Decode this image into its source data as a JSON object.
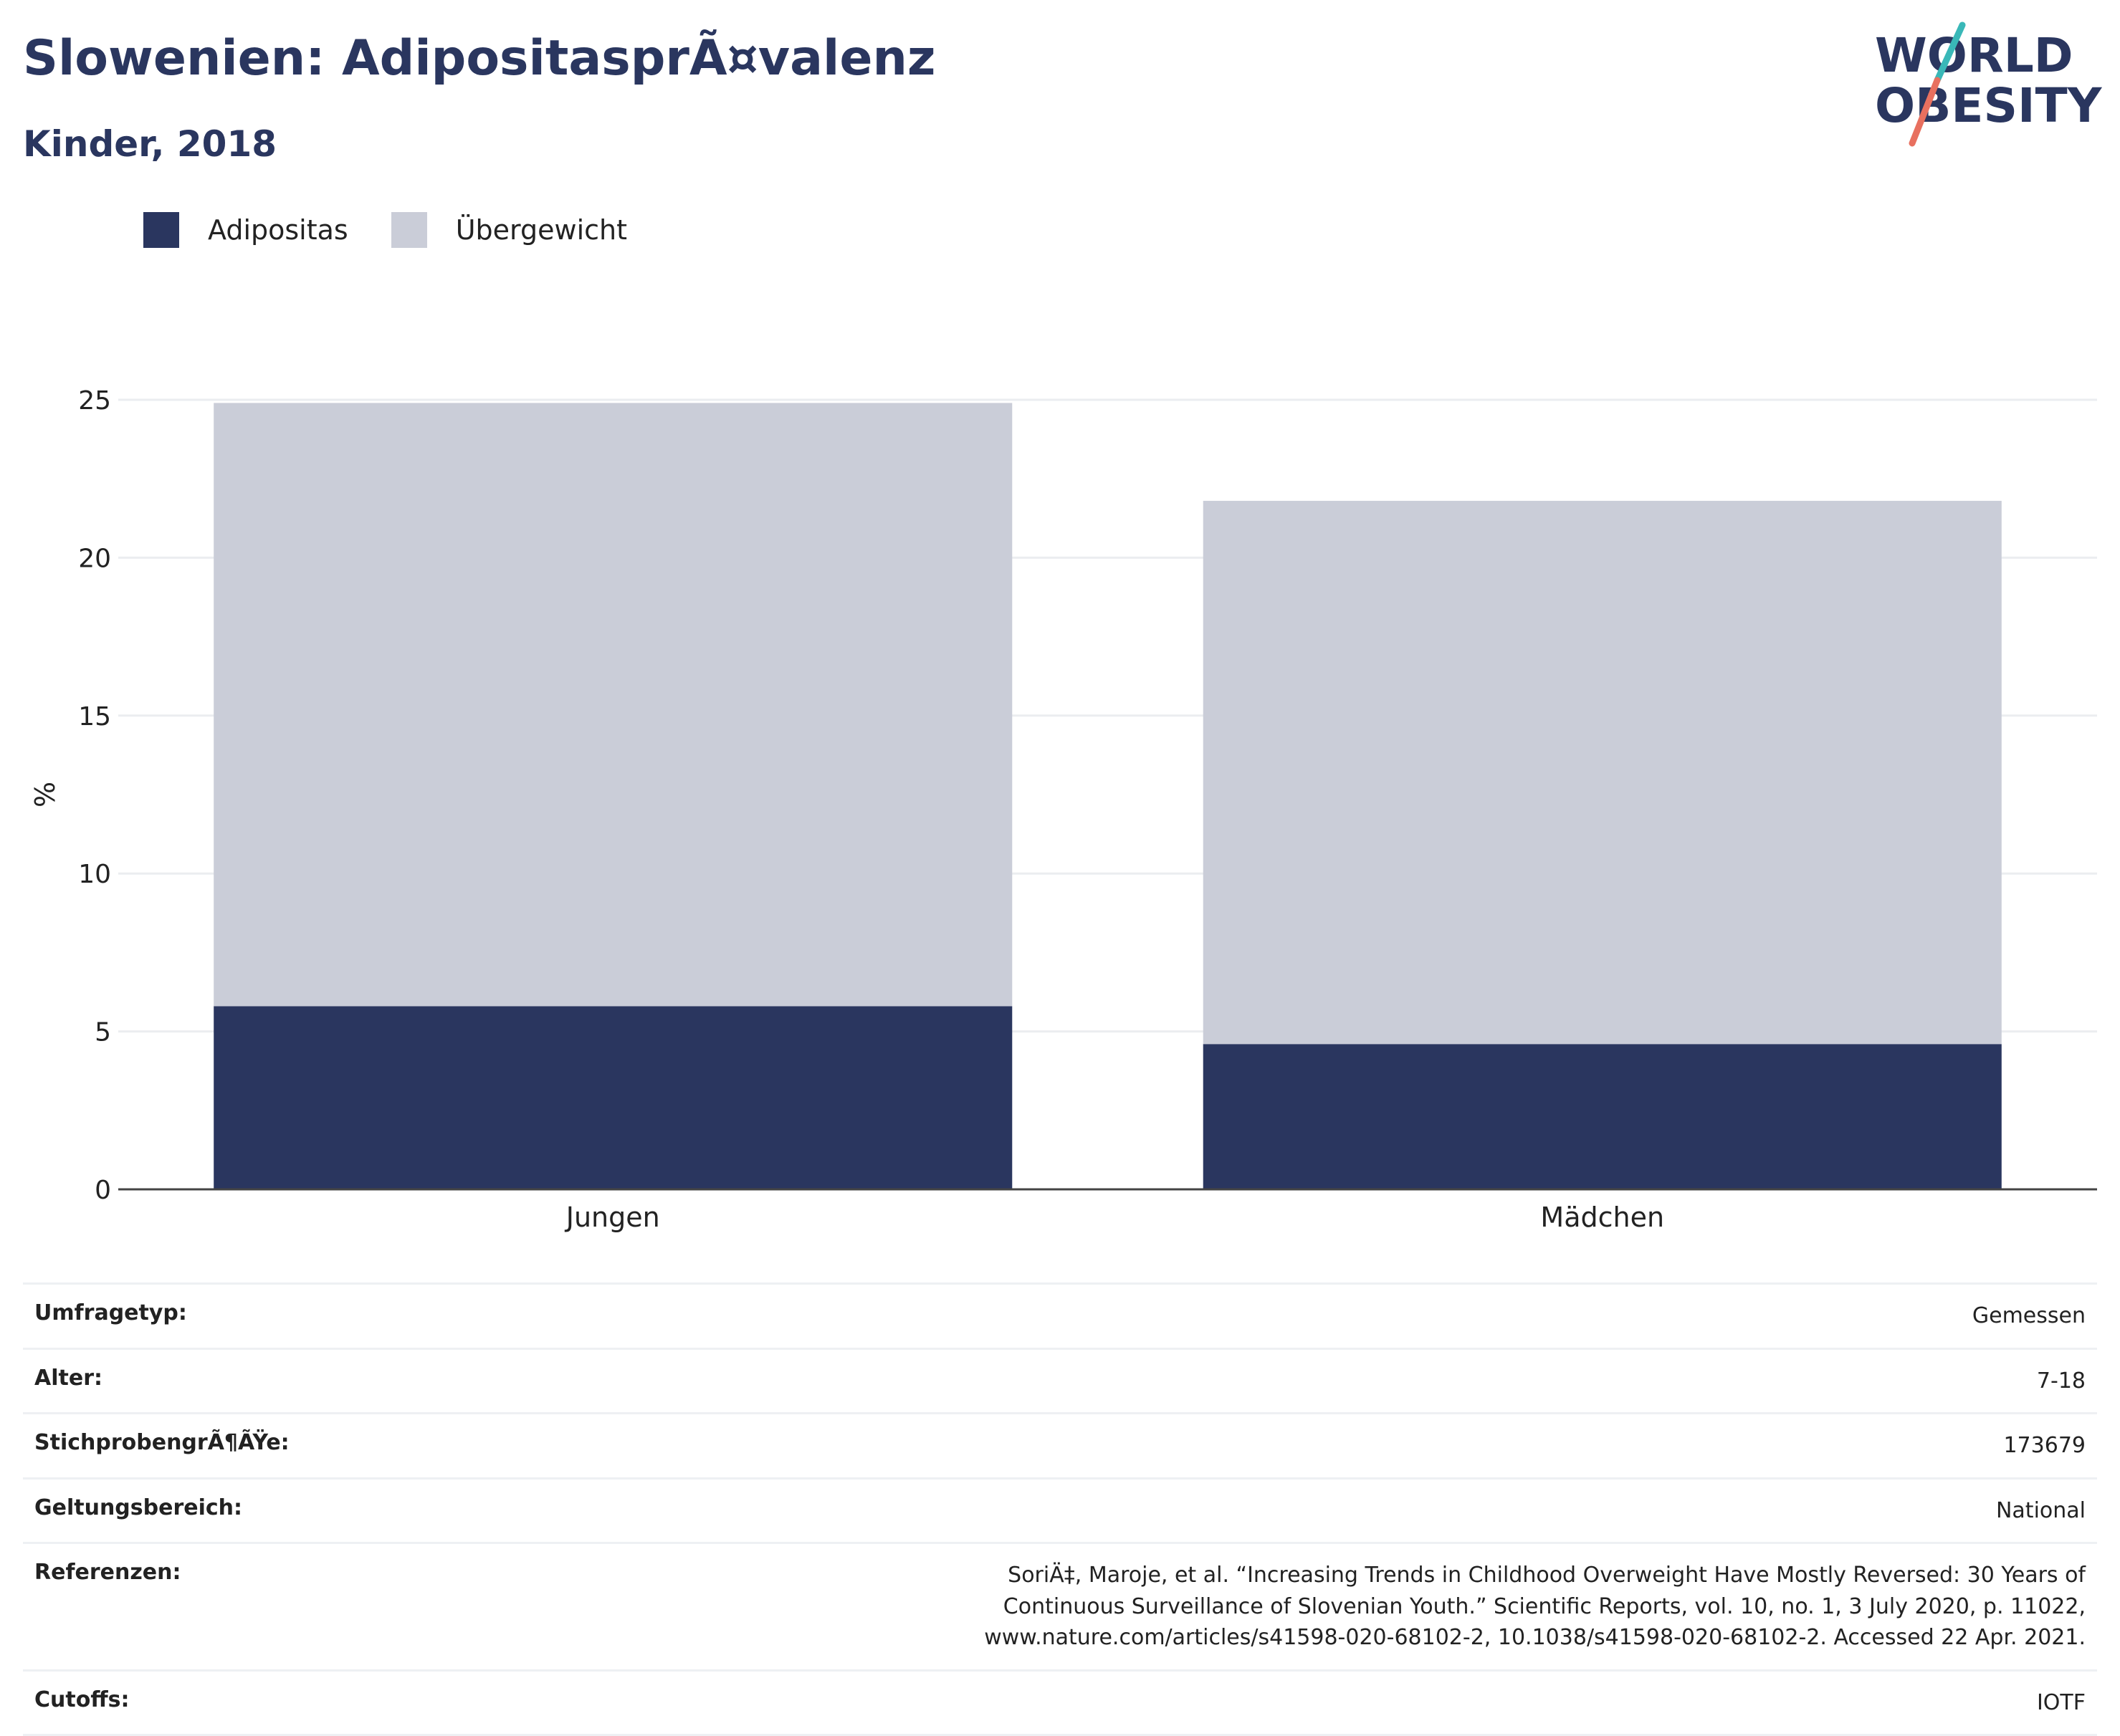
{
  "header": {
    "title": "Slowenien: AdipositasprÃ¤valenz",
    "subtitle": "Kinder, 2018",
    "logo_line1": "WORLD",
    "logo_line2": "OBESITY"
  },
  "colors": {
    "adipositas": "#2a365f",
    "uebergewicht": "#cacdd8",
    "title": "#2a365f",
    "logo_teal": "#39b8b8",
    "logo_coral": "#e8705f"
  },
  "chart_data": {
    "type": "bar",
    "stacked": true,
    "categories": [
      "Jungen",
      "Mädchen"
    ],
    "series": [
      {
        "name": "Adipositas",
        "values": [
          5.8,
          4.6
        ]
      },
      {
        "name": "Übergewicht",
        "values": [
          19.1,
          17.2
        ]
      }
    ],
    "xlabel": "",
    "ylabel": "%",
    "ylim": [
      0,
      25
    ],
    "yticks": [
      0,
      5,
      10,
      15,
      20,
      25
    ],
    "grid": true,
    "legend_position": "top-left"
  },
  "info": [
    {
      "key": "Umfragetyp:",
      "value": "Gemessen"
    },
    {
      "key": "Alter:",
      "value": "7-18"
    },
    {
      "key": "StichprobengrÃ¶ÃŸe:",
      "value": "173679"
    },
    {
      "key": "Geltungsbereich:",
      "value": "National"
    },
    {
      "key": "Referenzen:",
      "value": "SoriÄ‡, Maroje, et al. “Increasing Trends in Childhood Overweight Have Mostly Reversed: 30 Years of Continuous Surveillance of Slovenian Youth.” Scientific Reports, vol. 10, no. 1, 3 July 2020, p. 11022, www.nature.com/articles/s41598-020-68102-2, 10.1038/s41598-020-68102-2. Accessed 22 Apr. 2021."
    },
    {
      "key": "Cutoffs:",
      "value": "IOTF"
    }
  ]
}
